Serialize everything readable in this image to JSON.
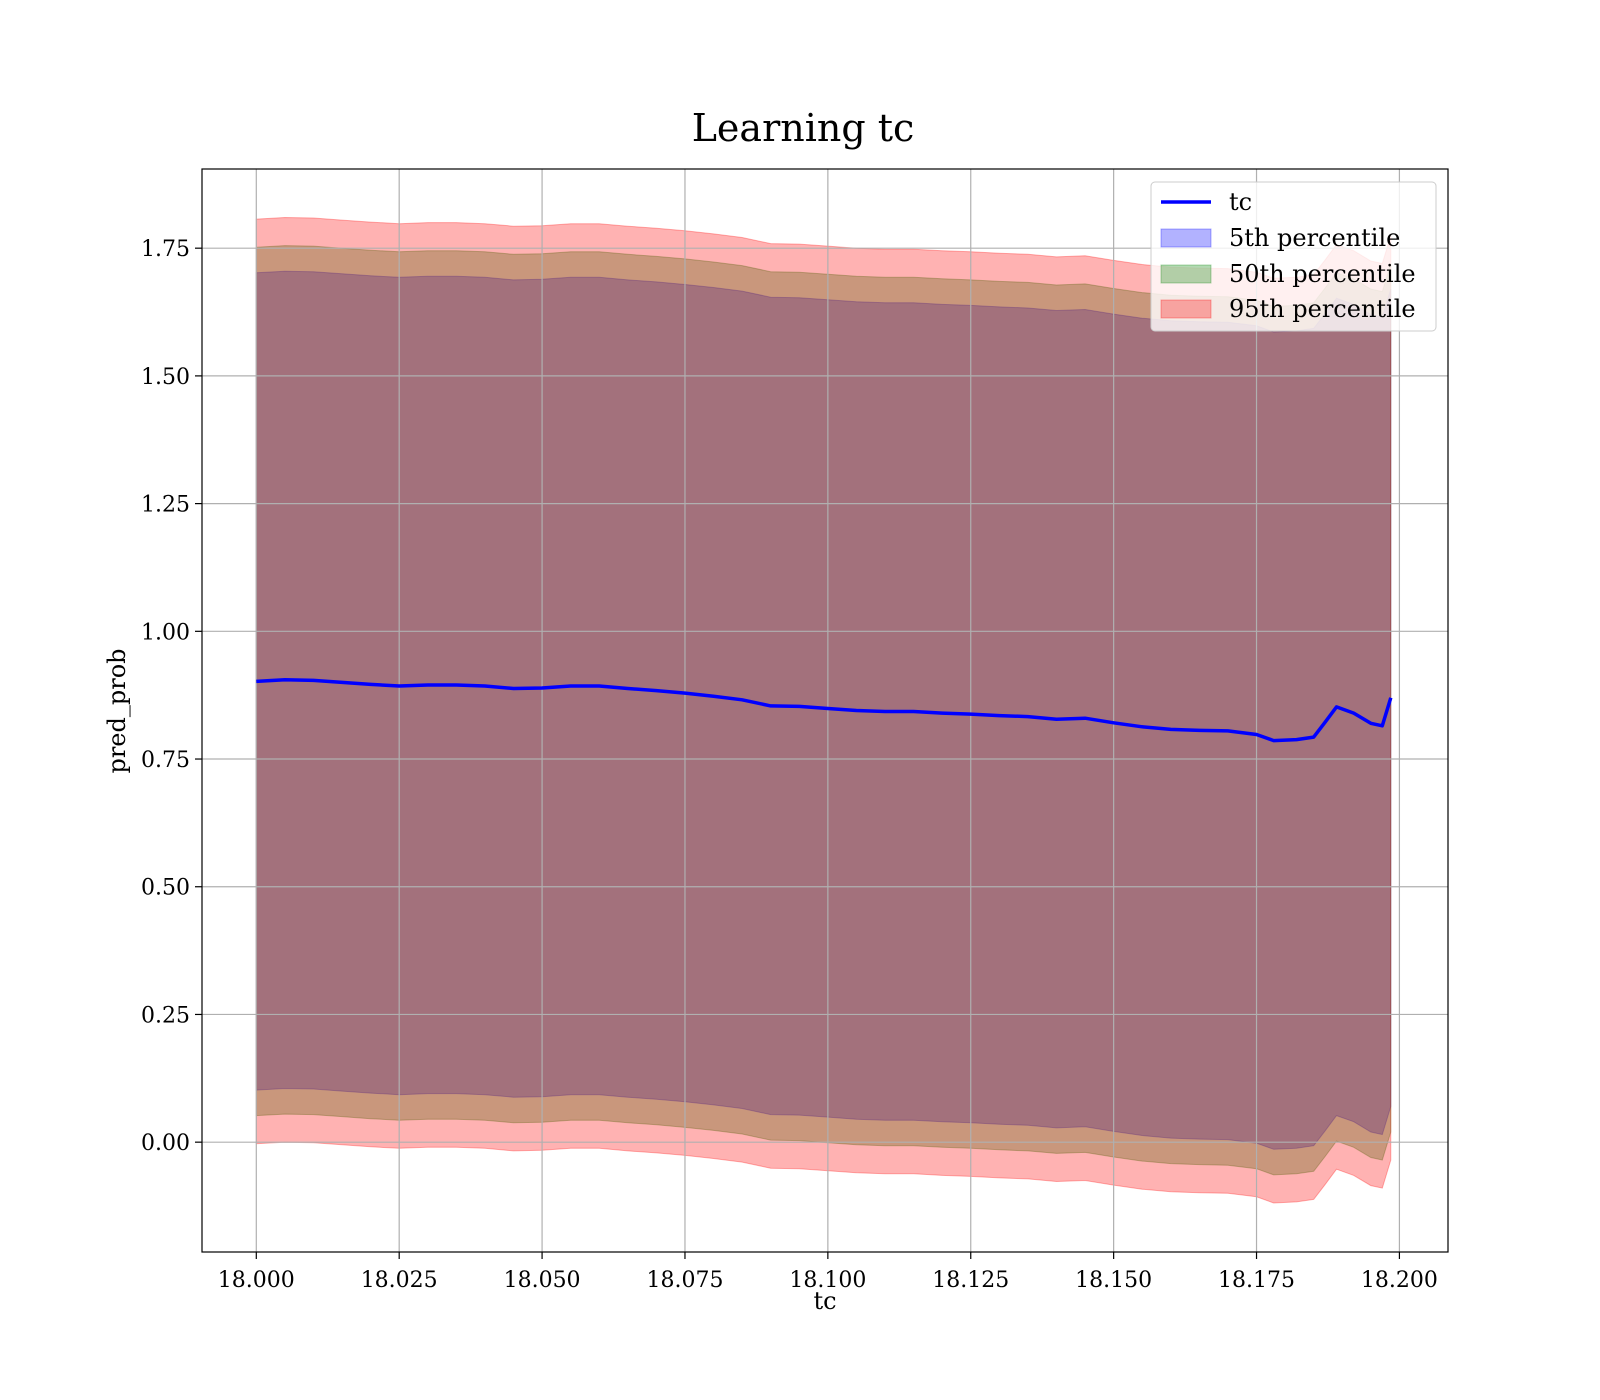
{
  "chart_data": {
    "type": "line",
    "title": "Learning tc",
    "xlabel": "tc",
    "ylabel": "pred_prob",
    "xlim": [
      17.9905,
      18.2085
    ],
    "ylim": [
      -0.215,
      1.905
    ],
    "xticks": [
      18.0,
      18.025,
      18.05,
      18.075,
      18.1,
      18.125,
      18.15,
      18.175,
      18.2
    ],
    "xtick_labels": [
      "18.000",
      "18.025",
      "18.050",
      "18.075",
      "18.100",
      "18.125",
      "18.150",
      "18.175",
      "18.200"
    ],
    "yticks": [
      0.0,
      0.25,
      0.5,
      0.75,
      1.0,
      1.25,
      1.5,
      1.75
    ],
    "ytick_labels": [
      "0.00",
      "0.25",
      "0.50",
      "0.75",
      "1.00",
      "1.25",
      "1.50",
      "1.75"
    ],
    "grid": true,
    "legend_position": "top-right",
    "x": [
      18.0,
      18.005,
      18.01,
      18.015,
      18.02,
      18.025,
      18.03,
      18.035,
      18.04,
      18.045,
      18.05,
      18.055,
      18.06,
      18.065,
      18.07,
      18.075,
      18.08,
      18.085,
      18.09,
      18.095,
      18.1,
      18.105,
      18.11,
      18.115,
      18.12,
      18.125,
      18.13,
      18.135,
      18.14,
      18.145,
      18.15,
      18.155,
      18.16,
      18.165,
      18.17,
      18.175,
      18.178,
      18.182,
      18.185,
      18.187,
      18.189,
      18.192,
      18.195,
      18.197,
      18.1985
    ],
    "series": [
      {
        "name": "tc",
        "kind": "line",
        "color": "#0000ff",
        "values": [
          0.902,
          0.905,
          0.904,
          0.9,
          0.896,
          0.893,
          0.895,
          0.895,
          0.893,
          0.888,
          0.889,
          0.893,
          0.893,
          0.888,
          0.884,
          0.879,
          0.873,
          0.866,
          0.854,
          0.853,
          0.849,
          0.845,
          0.843,
          0.843,
          0.84,
          0.838,
          0.835,
          0.833,
          0.828,
          0.83,
          0.821,
          0.813,
          0.808,
          0.806,
          0.805,
          0.798,
          0.786,
          0.788,
          0.793,
          0.822,
          0.852,
          0.84,
          0.82,
          0.815,
          0.87
        ]
      },
      {
        "name": "5th percentile",
        "kind": "band",
        "color": "#0000ff",
        "opacity": 0.3,
        "offset": 0.8
      },
      {
        "name": "50th percentile",
        "kind": "band",
        "color": "#008000",
        "opacity": 0.3,
        "offset": 0.85
      },
      {
        "name": "95th percentile",
        "kind": "band",
        "color": "#ff0000",
        "opacity": 0.3,
        "offset": 0.905
      }
    ]
  }
}
